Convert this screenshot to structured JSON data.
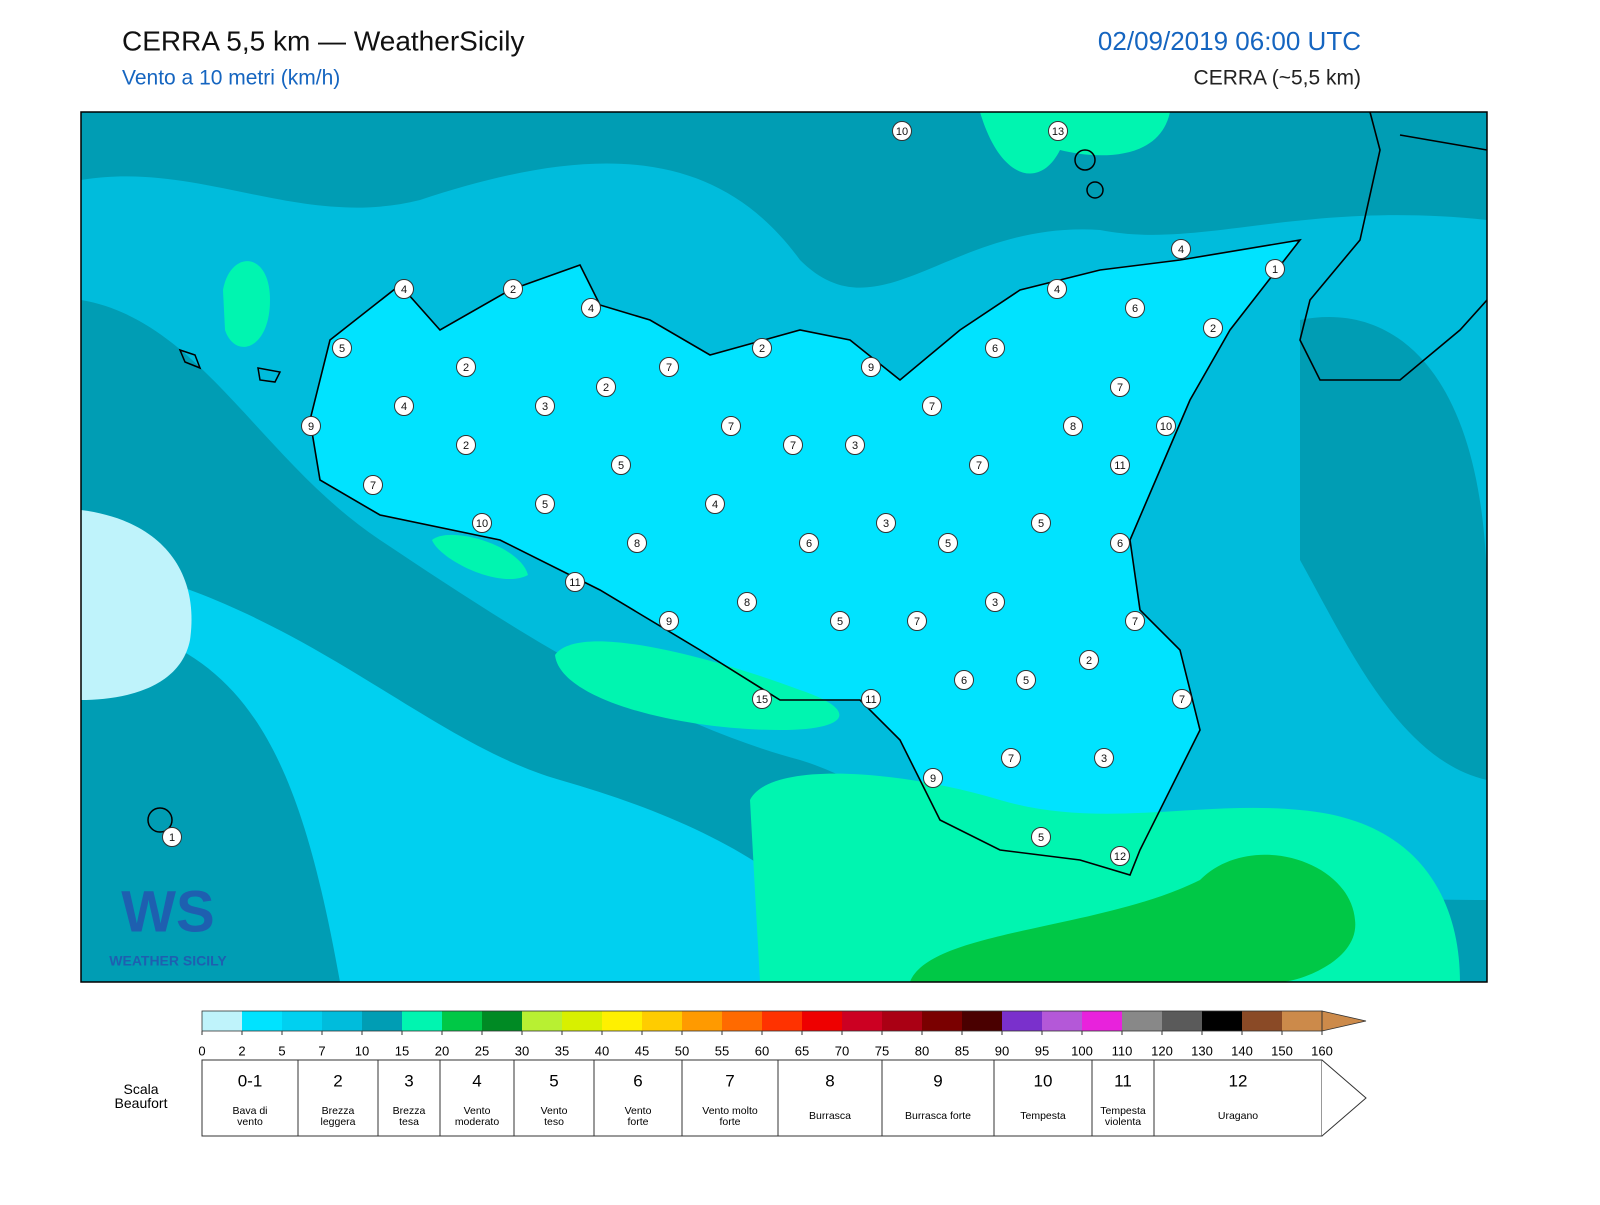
{
  "header": {
    "title": "CERRA 5,5 km — WeatherSicily",
    "subtitle": "Vento a 10 metri (km/h)",
    "datetime": "02/09/2019 06:00 UTC",
    "model": "CERRA (~5,5 km)"
  },
  "logo": {
    "mark": "WS",
    "text": "WEATHER SICILY"
  },
  "markers": {
    "values": [
      10,
      13,
      4,
      1,
      4,
      6,
      2,
      4,
      2,
      4,
      5,
      2,
      6,
      2,
      7,
      9,
      2,
      7,
      4,
      3,
      7,
      9,
      2,
      7,
      7,
      3,
      8,
      10,
      5,
      7,
      11,
      7,
      5,
      4,
      10,
      3,
      5,
      8,
      6,
      5,
      6,
      11,
      8,
      3,
      9,
      5,
      7,
      7,
      2,
      6,
      5,
      15,
      11,
      7,
      7,
      3,
      9,
      5,
      12,
      1
    ]
  },
  "colorbar": {
    "ticks": [
      0,
      2,
      5,
      7,
      10,
      15,
      20,
      25,
      30,
      35,
      40,
      45,
      50,
      55,
      60,
      65,
      70,
      75,
      80,
      85,
      90,
      95,
      100,
      110,
      120,
      130,
      140,
      150,
      160
    ],
    "colors": [
      "#bff3fb",
      "#00e3ff",
      "#00d0f0",
      "#00bcdc",
      "#009db4",
      "#00f5b0",
      "#00c846",
      "#008a24",
      "#b8f032",
      "#d8f000",
      "#fff000",
      "#ffcc00",
      "#ff9a00",
      "#ff6a00",
      "#ff3200",
      "#ee0000",
      "#cc0022",
      "#aa0014",
      "#7a0000",
      "#4a0000",
      "#7a30cc",
      "#b458d8",
      "#e822dc",
      "#888888",
      "#5a5a5a",
      "#000000",
      "#8a4a26",
      "#cc8a4a"
    ],
    "extend_color": "#cc8a4a"
  },
  "beaufort": {
    "title": "Scala Beaufort",
    "levels": [
      {
        "force": "0-1",
        "name": "Bava di vento"
      },
      {
        "force": 2,
        "name": "Brezza leggera"
      },
      {
        "force": 3,
        "name": "Brezza tesa"
      },
      {
        "force": 4,
        "name": "Vento moderato"
      },
      {
        "force": 5,
        "name": "Vento teso"
      },
      {
        "force": 6,
        "name": "Vento forte"
      },
      {
        "force": 7,
        "name": "Vento molto forte"
      },
      {
        "force": 8,
        "name": "Burrasca"
      },
      {
        "force": 9,
        "name": "Burrasca forte"
      },
      {
        "force": 10,
        "name": "Tempesta"
      },
      {
        "force": 11,
        "name": "Tempesta violenta"
      },
      {
        "force": 12,
        "name": "Uragano"
      }
    ]
  }
}
